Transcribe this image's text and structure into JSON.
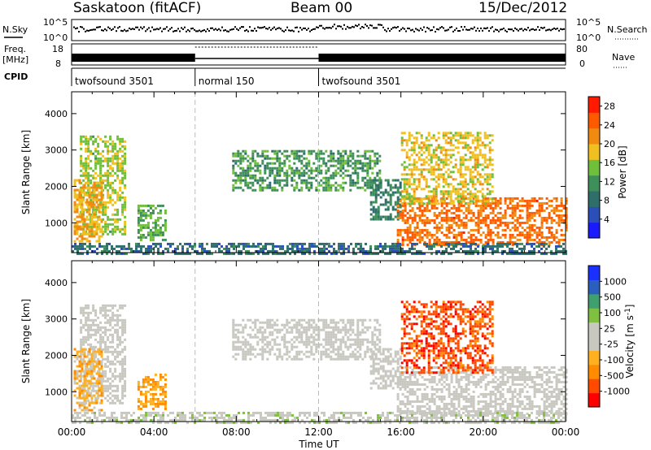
{
  "header": {
    "station": "Saskatoon (fitACF)",
    "beam": "Beam 00",
    "date": "15/Dec/2012"
  },
  "sky_panel": {
    "left_label": "N.Sky",
    "right_label": "N.Search",
    "left_ticks": [
      "10^5",
      "10^0"
    ],
    "right_ticks": [
      "10^5",
      "10^0"
    ]
  },
  "freq_panel": {
    "left_label_1": "Freq.",
    "left_label_2": "[MHz]",
    "right_label": "Nave",
    "left_ticks": [
      "18",
      "8"
    ],
    "right_ticks": [
      "80",
      "0"
    ]
  },
  "cpid": {
    "label": "CPID",
    "segments": [
      {
        "name": "twofsound 3501",
        "start_hour": 0,
        "end_hour": 6
      },
      {
        "name": "normal 150",
        "start_hour": 6,
        "end_hour": 12
      },
      {
        "name": "twofsound 3501",
        "start_hour": 12,
        "end_hour": 24
      }
    ]
  },
  "colors": {
    "power": [
      "#1a1aff",
      "#2a4fb8",
      "#2e6f6a",
      "#3f8f5a",
      "#6fbf3a",
      "#f0c020",
      "#f08a10",
      "#ff5a00",
      "#ff1a00"
    ],
    "velocity": [
      "#ff0000",
      "#ff4a00",
      "#ff8c00",
      "#ffb020",
      "#c8c8c0",
      "#c8c8c0",
      "#80c040",
      "#3f9f6f",
      "#2a5fbf",
      "#1a30ff"
    ]
  },
  "chart_data": [
    {
      "type": "heatmap",
      "name": "power",
      "xlabel": "Time UT",
      "ylabel": "Slant Range [km]",
      "xlim": [
        0,
        24
      ],
      "ylim": [
        180,
        4600
      ],
      "x_ticks": [
        "00:00",
        "04:00",
        "08:00",
        "12:00",
        "16:00",
        "20:00",
        "00:00"
      ],
      "y_ticks": [
        1000,
        2000,
        3000,
        4000
      ],
      "colorbar_label": "Power [dB]",
      "colorbar_ticks": [
        4,
        8,
        12,
        16,
        20,
        24,
        28
      ],
      "clim": [
        0,
        30
      ],
      "echo_regions": [
        {
          "t0": 0.4,
          "t1": 2.6,
          "r0": 700,
          "r1": 3400,
          "value": 16
        },
        {
          "t0": 0.1,
          "t1": 1.5,
          "r0": 500,
          "r1": 2200,
          "value": 20
        },
        {
          "t0": 3.2,
          "t1": 4.6,
          "r0": 500,
          "r1": 1500,
          "value": 14
        },
        {
          "t0": 7.8,
          "t1": 15.0,
          "r0": 1900,
          "r1": 3000,
          "value": 12
        },
        {
          "t0": 14.5,
          "t1": 16.0,
          "r0": 1100,
          "r1": 2200,
          "value": 10
        },
        {
          "t0": 15.8,
          "t1": 24.0,
          "r0": 400,
          "r1": 1700,
          "value": 24
        },
        {
          "t0": 16.0,
          "t1": 20.5,
          "r0": 1500,
          "r1": 3500,
          "value": 18
        },
        {
          "t0": 0.0,
          "t1": 24.0,
          "r0": 180,
          "r1": 450,
          "value": 8
        }
      ]
    },
    {
      "type": "heatmap",
      "name": "velocity",
      "xlabel": "Time UT",
      "ylabel": "Slant Range [km]",
      "xlim": [
        0,
        24
      ],
      "ylim": [
        180,
        4600
      ],
      "x_ticks": [
        "00:00",
        "04:00",
        "08:00",
        "12:00",
        "16:00",
        "20:00",
        "00:00"
      ],
      "y_ticks": [
        1000,
        2000,
        3000,
        4000
      ],
      "colorbar_label": "Velocity [m s^-1]",
      "colorbar_ticks": [
        1000,
        500,
        100,
        25,
        -25,
        -100,
        -500,
        -1000
      ],
      "clim": [
        -1000,
        1000
      ],
      "echo_regions": [
        {
          "t0": 0.4,
          "t1": 2.6,
          "r0": 700,
          "r1": 3400,
          "value": 0
        },
        {
          "t0": 0.1,
          "t1": 1.5,
          "r0": 500,
          "r1": 2200,
          "value": -300
        },
        {
          "t0": 3.2,
          "t1": 4.6,
          "r0": 500,
          "r1": 1500,
          "value": -400
        },
        {
          "t0": 7.8,
          "t1": 15.0,
          "r0": 1900,
          "r1": 3000,
          "value": 0
        },
        {
          "t0": 14.5,
          "t1": 16.0,
          "r0": 1100,
          "r1": 2200,
          "value": 0
        },
        {
          "t0": 15.8,
          "t1": 24.0,
          "r0": 400,
          "r1": 1700,
          "value": 0
        },
        {
          "t0": 16.0,
          "t1": 20.5,
          "r0": 1500,
          "r1": 3500,
          "value": -700
        },
        {
          "t0": 0.0,
          "t1": 24.0,
          "r0": 180,
          "r1": 450,
          "value": 80
        }
      ]
    }
  ]
}
